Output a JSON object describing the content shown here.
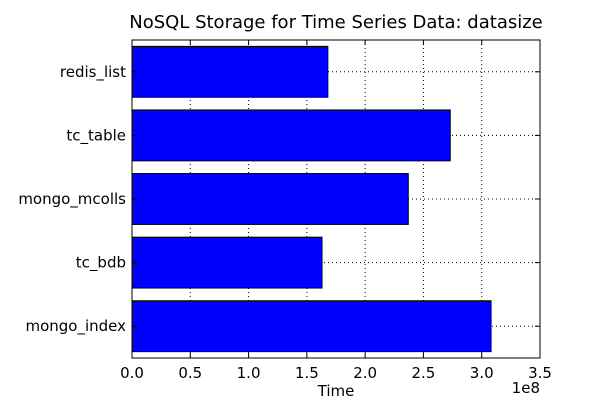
{
  "chart_data": {
    "type": "bar",
    "orientation": "horizontal",
    "title": "NoSQL Storage for Time Series Data: datasize",
    "xlabel": "Time",
    "ylabel": "",
    "x_offset_label": "1e8",
    "xlim": [
      0,
      350000000
    ],
    "x_ticks": [
      0,
      50000000,
      100000000,
      150000000,
      200000000,
      250000000,
      300000000,
      350000000
    ],
    "x_tick_labels": [
      "0.0",
      "0.5",
      "1.0",
      "1.5",
      "2.0",
      "2.5",
      "3.0",
      "3.5"
    ],
    "categories": [
      "redis_list",
      "tc_table",
      "mongo_mcolls",
      "tc_bdb",
      "mongo_index"
    ],
    "values": [
      168000000,
      273000000,
      237000000,
      163000000,
      308000000
    ],
    "bar_color": "#0000ff",
    "grid": true
  }
}
